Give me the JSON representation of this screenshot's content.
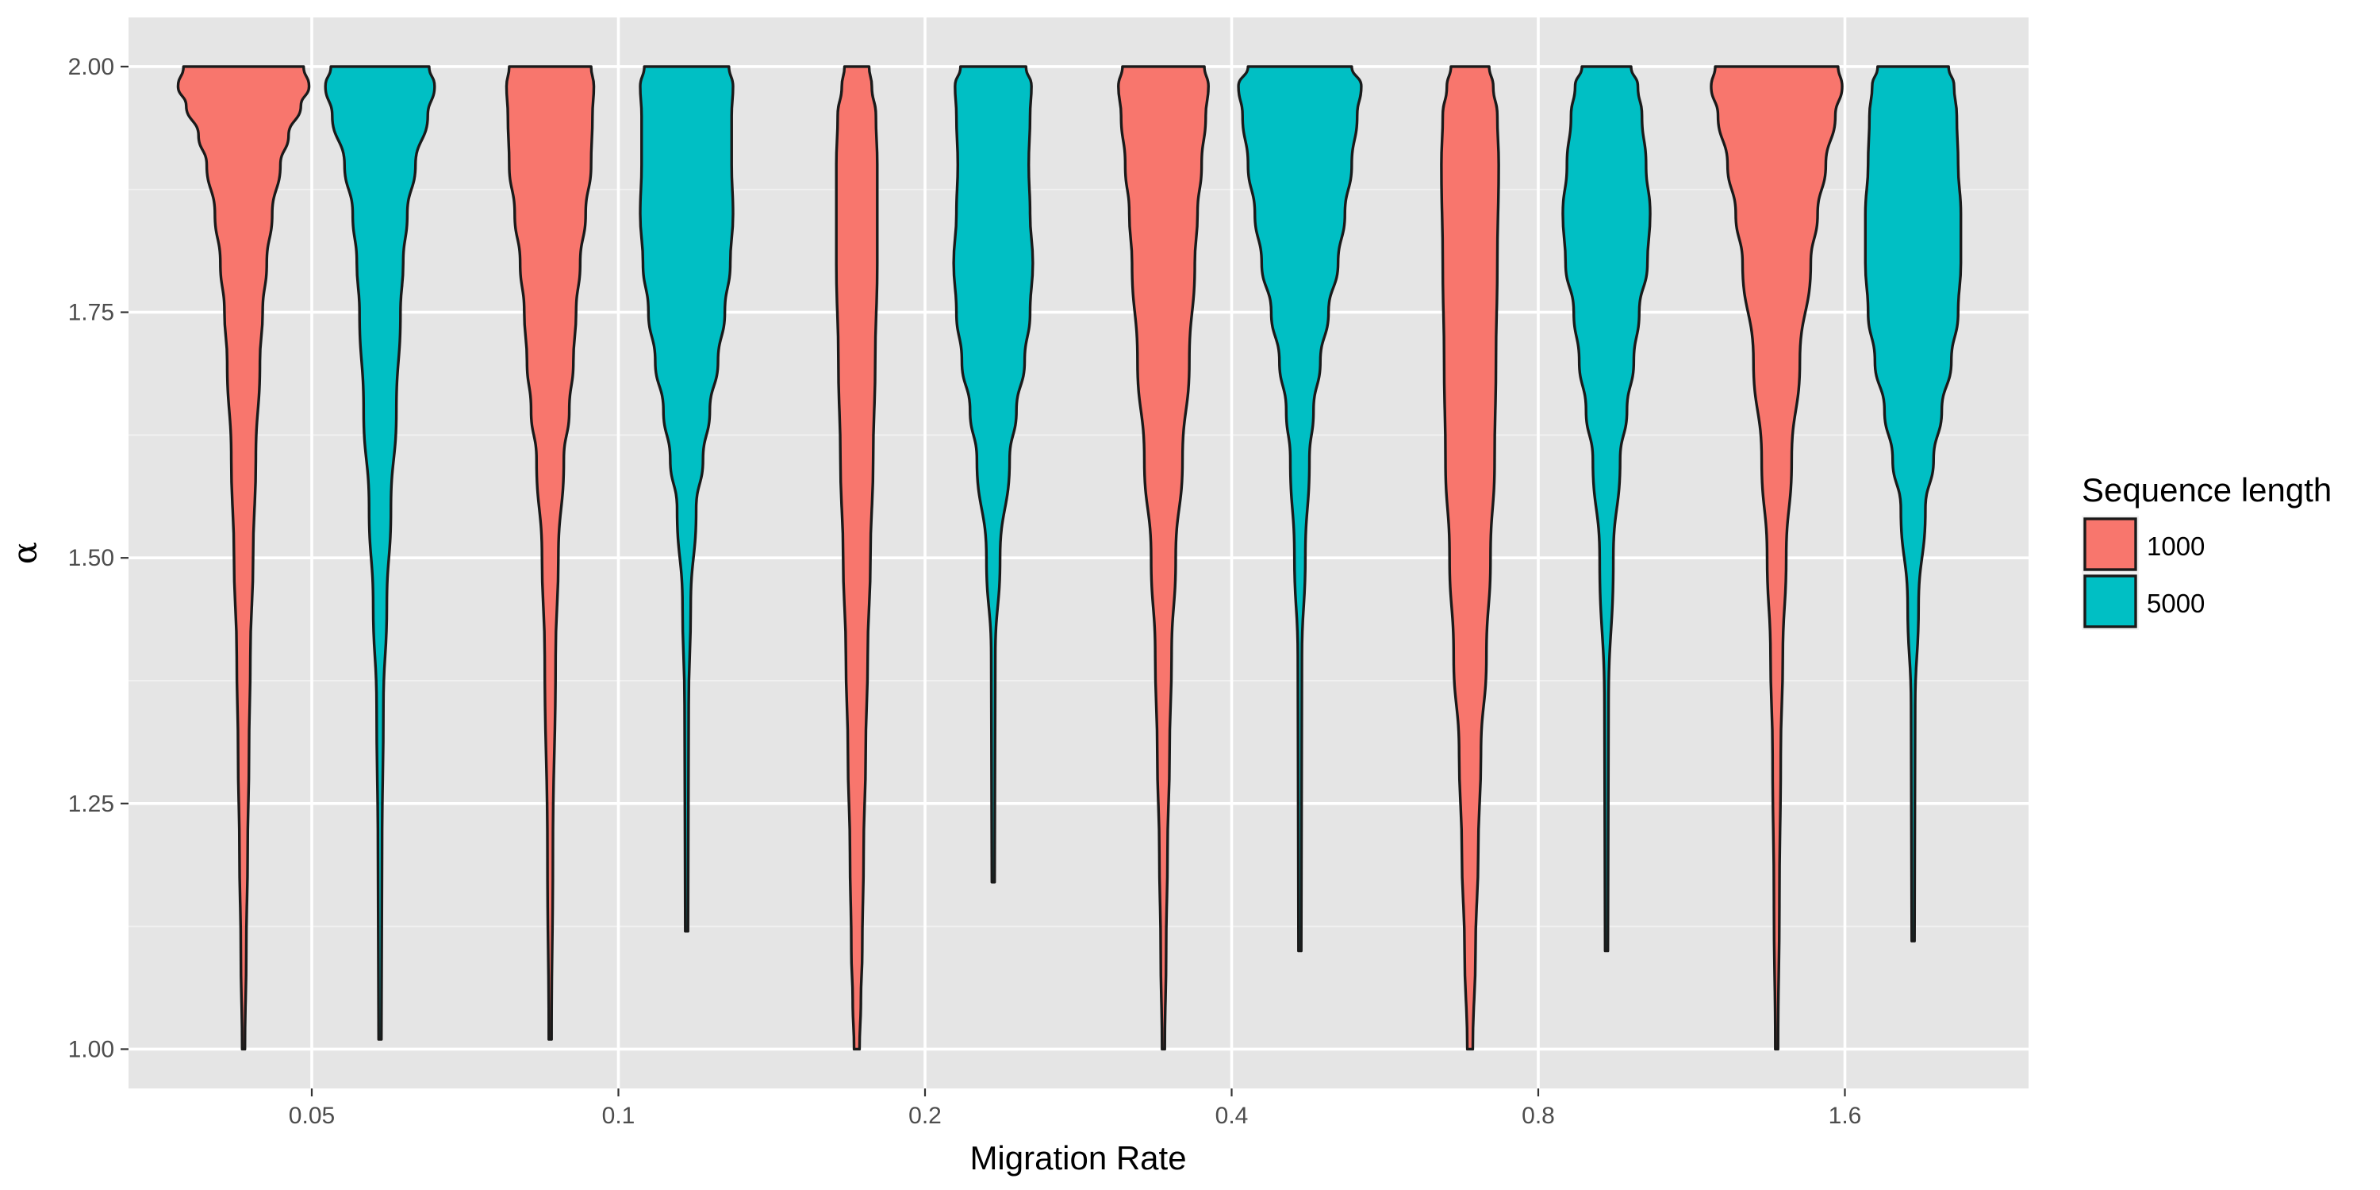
{
  "chart_data": {
    "type": "violin",
    "title": "",
    "xlabel": "Migration Rate",
    "ylabel": "α",
    "ylim": [
      0.96,
      2.05
    ],
    "y_ticks": [
      "1.00",
      "1.25",
      "1.50",
      "1.75",
      "2.00"
    ],
    "y_tick_values": [
      1.0,
      1.25,
      1.5,
      1.75,
      2.0
    ],
    "categories": [
      "0.05",
      "0.1",
      "0.2",
      "0.4",
      "0.8",
      "1.6"
    ],
    "colors": {
      "1000": "#F8766D",
      "5000": "#00BFC4"
    },
    "grid": true,
    "legend": {
      "title": "Sequence length",
      "position": "right",
      "entries": [
        "1000",
        "5000"
      ]
    },
    "series": [
      {
        "name": "1000",
        "violins": [
          {
            "category": "0.05",
            "min": 1.0,
            "max": 2.0,
            "profile": [
              [
                1.0,
                0.02
              ],
              [
                1.1,
                0.04
              ],
              [
                1.2,
                0.06
              ],
              [
                1.3,
                0.08
              ],
              [
                1.4,
                0.1
              ],
              [
                1.5,
                0.14
              ],
              [
                1.6,
                0.18
              ],
              [
                1.7,
                0.24
              ],
              [
                1.75,
                0.28
              ],
              [
                1.8,
                0.34
              ],
              [
                1.85,
                0.42
              ],
              [
                1.9,
                0.54
              ],
              [
                1.93,
                0.66
              ],
              [
                1.96,
                0.84
              ],
              [
                1.98,
                0.96
              ],
              [
                2.0,
                0.88
              ]
            ]
          },
          {
            "category": "0.1",
            "min": 1.01,
            "max": 2.0,
            "profile": [
              [
                1.01,
                0.02
              ],
              [
                1.2,
                0.04
              ],
              [
                1.4,
                0.08
              ],
              [
                1.5,
                0.12
              ],
              [
                1.6,
                0.2
              ],
              [
                1.65,
                0.28
              ],
              [
                1.7,
                0.34
              ],
              [
                1.75,
                0.38
              ],
              [
                1.8,
                0.44
              ],
              [
                1.85,
                0.52
              ],
              [
                1.9,
                0.6
              ],
              [
                1.95,
                0.62
              ],
              [
                1.98,
                0.64
              ],
              [
                2.0,
                0.6
              ]
            ]
          },
          {
            "category": "0.2",
            "min": 1.0,
            "max": 2.0,
            "profile": [
              [
                1.0,
                0.04
              ],
              [
                1.05,
                0.06
              ],
              [
                1.1,
                0.08
              ],
              [
                1.2,
                0.1
              ],
              [
                1.3,
                0.13
              ],
              [
                1.4,
                0.16
              ],
              [
                1.5,
                0.2
              ],
              [
                1.6,
                0.24
              ],
              [
                1.7,
                0.27
              ],
              [
                1.8,
                0.3
              ],
              [
                1.9,
                0.3
              ],
              [
                1.95,
                0.28
              ],
              [
                1.98,
                0.22
              ],
              [
                2.0,
                0.18
              ]
            ]
          },
          {
            "category": "0.4",
            "min": 1.0,
            "max": 2.0,
            "profile": [
              [
                1.0,
                0.02
              ],
              [
                1.1,
                0.04
              ],
              [
                1.2,
                0.06
              ],
              [
                1.3,
                0.09
              ],
              [
                1.4,
                0.12
              ],
              [
                1.5,
                0.18
              ],
              [
                1.6,
                0.28
              ],
              [
                1.7,
                0.38
              ],
              [
                1.8,
                0.46
              ],
              [
                1.85,
                0.5
              ],
              [
                1.9,
                0.56
              ],
              [
                1.95,
                0.62
              ],
              [
                1.98,
                0.66
              ],
              [
                2.0,
                0.6
              ]
            ]
          },
          {
            "category": "0.8",
            "min": 1.0,
            "max": 2.0,
            "profile": [
              [
                1.0,
                0.04
              ],
              [
                1.1,
                0.08
              ],
              [
                1.2,
                0.12
              ],
              [
                1.3,
                0.16
              ],
              [
                1.4,
                0.24
              ],
              [
                1.5,
                0.3
              ],
              [
                1.6,
                0.36
              ],
              [
                1.7,
                0.38
              ],
              [
                1.8,
                0.4
              ],
              [
                1.9,
                0.42
              ],
              [
                1.95,
                0.4
              ],
              [
                1.98,
                0.34
              ],
              [
                2.0,
                0.28
              ]
            ]
          },
          {
            "category": "1.6",
            "min": 1.0,
            "max": 2.0,
            "profile": [
              [
                1.0,
                0.02
              ],
              [
                1.15,
                0.04
              ],
              [
                1.3,
                0.06
              ],
              [
                1.4,
                0.09
              ],
              [
                1.5,
                0.14
              ],
              [
                1.6,
                0.22
              ],
              [
                1.7,
                0.34
              ],
              [
                1.8,
                0.5
              ],
              [
                1.85,
                0.6
              ],
              [
                1.9,
                0.72
              ],
              [
                1.95,
                0.86
              ],
              [
                1.98,
                0.96
              ],
              [
                2.0,
                0.9
              ]
            ]
          }
        ]
      },
      {
        "name": "5000",
        "violins": [
          {
            "category": "0.05",
            "min": 1.01,
            "max": 2.0,
            "profile": [
              [
                1.01,
                0.02
              ],
              [
                1.2,
                0.03
              ],
              [
                1.35,
                0.05
              ],
              [
                1.45,
                0.1
              ],
              [
                1.55,
                0.16
              ],
              [
                1.65,
                0.24
              ],
              [
                1.75,
                0.3
              ],
              [
                1.8,
                0.34
              ],
              [
                1.85,
                0.4
              ],
              [
                1.9,
                0.52
              ],
              [
                1.95,
                0.7
              ],
              [
                1.98,
                0.8
              ],
              [
                2.0,
                0.72
              ]
            ]
          },
          {
            "category": "0.1",
            "min": 1.12,
            "max": 2.0,
            "profile": [
              [
                1.12,
                0.02
              ],
              [
                1.35,
                0.03
              ],
              [
                1.45,
                0.06
              ],
              [
                1.55,
                0.14
              ],
              [
                1.6,
                0.24
              ],
              [
                1.65,
                0.34
              ],
              [
                1.7,
                0.46
              ],
              [
                1.75,
                0.56
              ],
              [
                1.8,
                0.64
              ],
              [
                1.85,
                0.68
              ],
              [
                1.9,
                0.66
              ],
              [
                1.95,
                0.66
              ],
              [
                1.98,
                0.68
              ],
              [
                2.0,
                0.62
              ]
            ]
          },
          {
            "category": "0.2",
            "min": 1.17,
            "max": 2.0,
            "profile": [
              [
                1.17,
                0.02
              ],
              [
                1.4,
                0.03
              ],
              [
                1.5,
                0.1
              ],
              [
                1.6,
                0.24
              ],
              [
                1.65,
                0.34
              ],
              [
                1.7,
                0.46
              ],
              [
                1.75,
                0.54
              ],
              [
                1.8,
                0.58
              ],
              [
                1.85,
                0.54
              ],
              [
                1.9,
                0.52
              ],
              [
                1.95,
                0.54
              ],
              [
                1.98,
                0.56
              ],
              [
                2.0,
                0.48
              ]
            ]
          },
          {
            "category": "0.4",
            "min": 1.1,
            "max": 2.0,
            "profile": [
              [
                1.1,
                0.02
              ],
              [
                1.4,
                0.03
              ],
              [
                1.5,
                0.08
              ],
              [
                1.6,
                0.14
              ],
              [
                1.65,
                0.2
              ],
              [
                1.7,
                0.3
              ],
              [
                1.75,
                0.42
              ],
              [
                1.8,
                0.56
              ],
              [
                1.85,
                0.66
              ],
              [
                1.9,
                0.76
              ],
              [
                1.95,
                0.84
              ],
              [
                1.98,
                0.9
              ],
              [
                2.0,
                0.76
              ]
            ]
          },
          {
            "category": "0.8",
            "min": 1.1,
            "max": 2.0,
            "profile": [
              [
                1.1,
                0.02
              ],
              [
                1.35,
                0.03
              ],
              [
                1.5,
                0.1
              ],
              [
                1.6,
                0.2
              ],
              [
                1.65,
                0.3
              ],
              [
                1.7,
                0.4
              ],
              [
                1.75,
                0.48
              ],
              [
                1.8,
                0.6
              ],
              [
                1.85,
                0.64
              ],
              [
                1.9,
                0.58
              ],
              [
                1.95,
                0.52
              ],
              [
                1.98,
                0.46
              ],
              [
                2.0,
                0.36
              ]
            ]
          },
          {
            "category": "1.6",
            "min": 1.11,
            "max": 2.0,
            "profile": [
              [
                1.11,
                0.02
              ],
              [
                1.35,
                0.03
              ],
              [
                1.45,
                0.08
              ],
              [
                1.55,
                0.18
              ],
              [
                1.6,
                0.3
              ],
              [
                1.65,
                0.42
              ],
              [
                1.7,
                0.56
              ],
              [
                1.75,
                0.66
              ],
              [
                1.8,
                0.7
              ],
              [
                1.85,
                0.7
              ],
              [
                1.9,
                0.66
              ],
              [
                1.95,
                0.64
              ],
              [
                1.98,
                0.6
              ],
              [
                2.0,
                0.52
              ]
            ]
          }
        ]
      }
    ]
  }
}
